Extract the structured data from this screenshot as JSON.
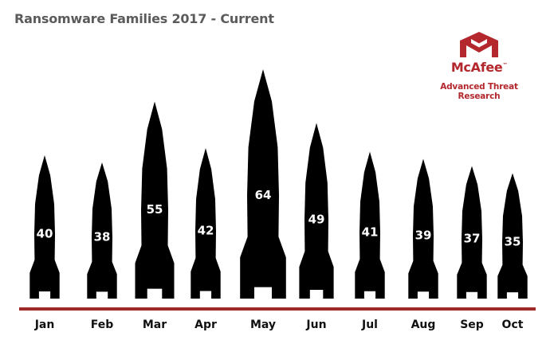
{
  "chart_data": {
    "type": "bar",
    "title": "Ransomware Families 2017 - Current",
    "categories": [
      "Jan",
      "Feb",
      "Mar",
      "Apr",
      "May",
      "Jun",
      "Jul",
      "Aug",
      "Sep",
      "Oct"
    ],
    "values": [
      40,
      38,
      55,
      42,
      64,
      49,
      41,
      39,
      37,
      35
    ],
    "series": [
      {
        "values": [
          40,
          38,
          55,
          42,
          64,
          49,
          41,
          39,
          37,
          35
        ]
      }
    ],
    "mark_style": "rocket",
    "grid": false,
    "legend": "none"
  },
  "logo": {
    "name": "McAfee",
    "trademark": "™",
    "tagline": "Advanced Threat Research",
    "icon": "mcafee-shield-logo"
  },
  "colors": {
    "rocket": "#000000",
    "baseline": "#9e2a2b",
    "brand": "#b3272d",
    "title": "#5b5b5b"
  }
}
